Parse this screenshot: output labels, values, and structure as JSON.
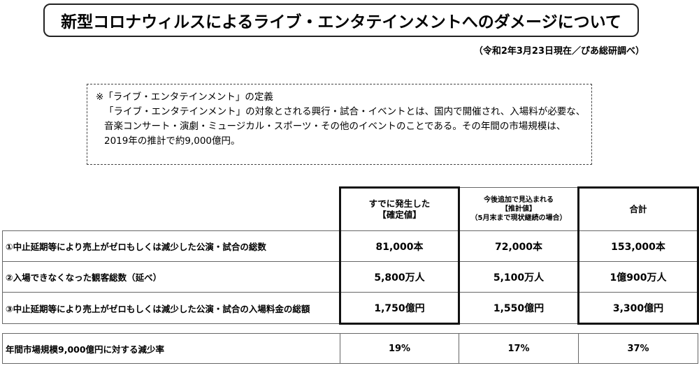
{
  "title": "新型コロナウィルスによるライブ・エンタテインメントへのダメージについて",
  "as_of": "（令和2年3月23日現在／ぴあ総研調べ）",
  "definition": {
    "heading": "※「ライブ・エンタテインメント」の定義",
    "lines": [
      "「ライブ・エンタテインメント」の対象とされる興行・試合・イベントとは、国内で開催され、入場料が必要な、",
      "音楽コンサート・演劇・ミュージカル・スポーツ・その他のイベントのことである。その年間の市場規模は、",
      "2019年の推計で約9,000億円。"
    ]
  },
  "table": {
    "headers": {
      "confirmed": {
        "line1": "すでに発生した",
        "line2": "【確定値】"
      },
      "estimated": {
        "line1": "今後追加で見込まれる",
        "line2": "【推計値】",
        "line3": "（5月末まで現状継続の場合）"
      },
      "total": "合計"
    },
    "rows": [
      {
        "label": "①中止延期等により売上がゼロもしくは減少した公演・試合の総数",
        "confirmed": "81,000本",
        "estimated": "72,000本",
        "total": "153,000本"
      },
      {
        "label": "②入場できなくなった観客総数（延べ）",
        "confirmed": "5,800万人",
        "estimated": "5,100万人",
        "total": "1億900万人"
      },
      {
        "label": "③中止延期等により売上がゼロもしくは減少した公演・試合の入場料金の総額",
        "confirmed": "1,750億円",
        "estimated": "1,550億円",
        "total": "3,300億円"
      }
    ]
  },
  "reduction": {
    "label": "年間市場規模9,000億円に対する減少率",
    "confirmed": "19%",
    "estimated": "17%",
    "total": "37%"
  }
}
